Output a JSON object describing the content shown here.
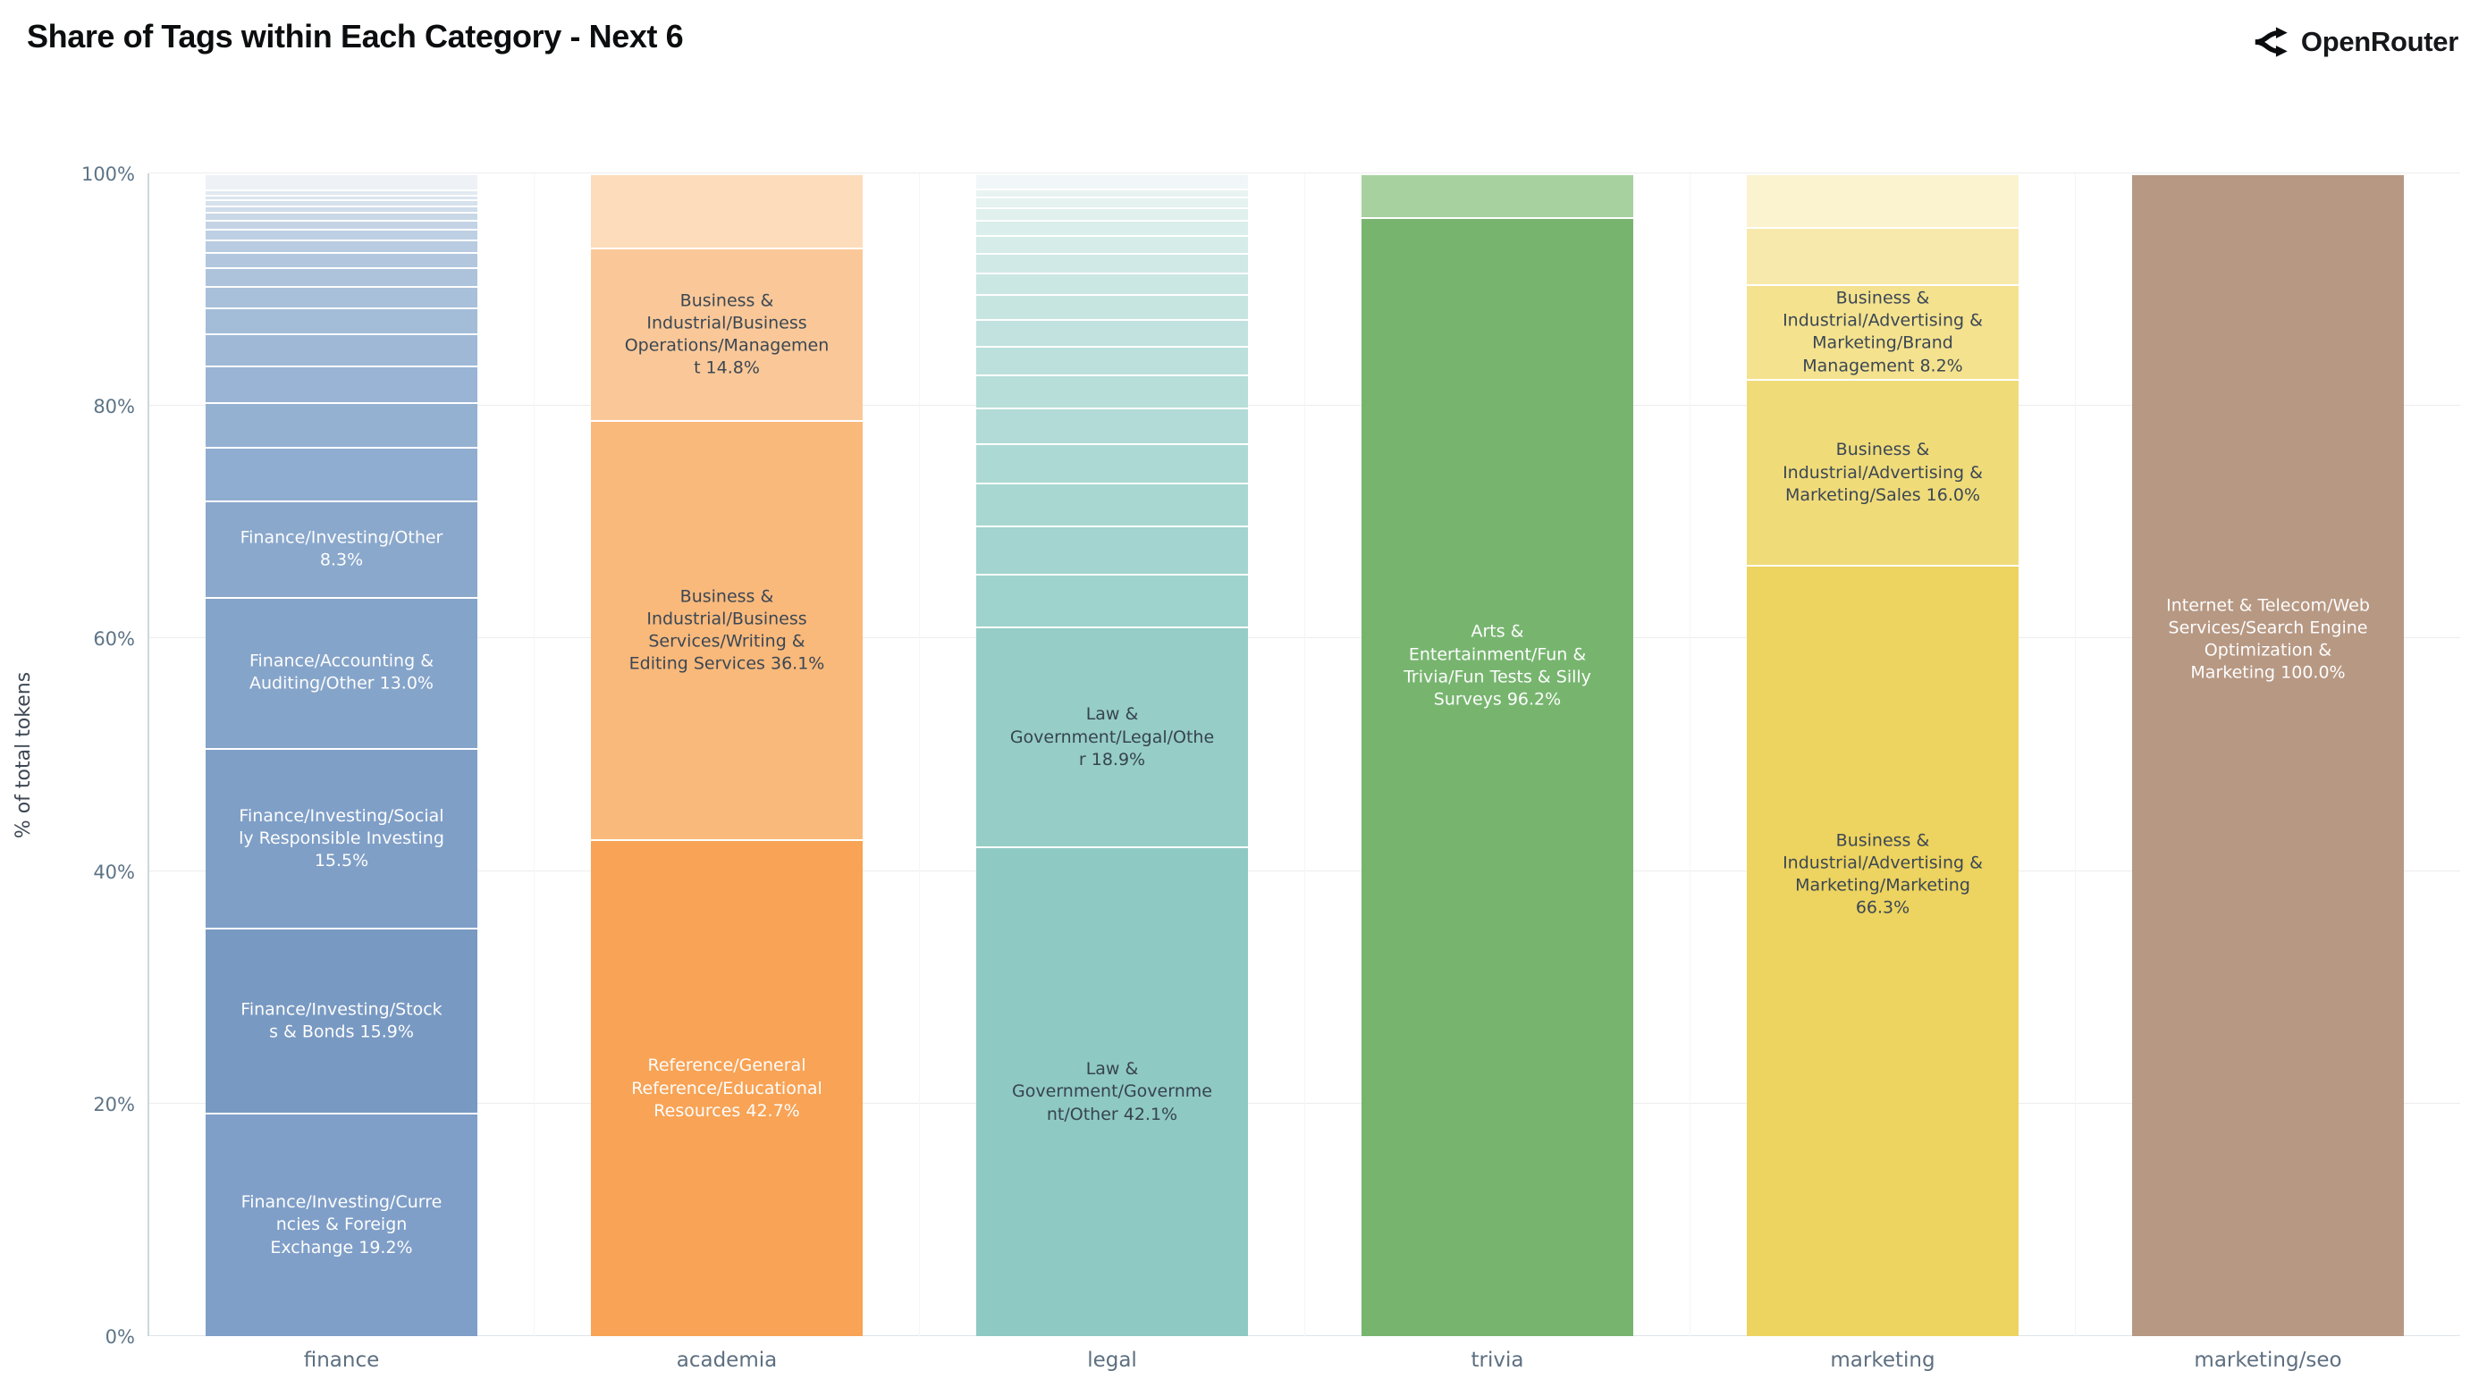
{
  "page": {
    "title": "Share of Tags within Each Category - Next 6"
  },
  "brand": {
    "name": "OpenRouter",
    "logo_icon": "route-split-icon"
  },
  "chart_data": {
    "type": "bar",
    "stacking": "percent",
    "title": "Share of Tags within Each Category - Next 6",
    "xlabel": "",
    "ylabel": "% of total tokens",
    "ylim": [
      0,
      100
    ],
    "grid": "horizontal",
    "legend": "none",
    "yticks": [
      {
        "value": 0,
        "label": "0%"
      },
      {
        "value": 20,
        "label": "20%"
      },
      {
        "value": 40,
        "label": "40%"
      },
      {
        "value": 60,
        "label": "60%"
      },
      {
        "value": 80,
        "label": "80%"
      },
      {
        "value": 100,
        "label": "100%"
      }
    ],
    "categories": [
      "finance",
      "academia",
      "legal",
      "trivia",
      "marketing",
      "marketing/seo"
    ],
    "bars": [
      {
        "category": "finance",
        "segments": [
          {
            "label": "Finance/Investing/Currencies & Foreign Exchange 19.2%",
            "value": 19.2,
            "color": "#7f9fc8",
            "text_color": "#fdfdfd"
          },
          {
            "label": "Finance/Investing/Stocks & Bonds 15.9%",
            "value": 15.9,
            "color": "#7899c2",
            "text_color": "#fdfdfd"
          },
          {
            "label": "Finance/Investing/Socially Responsible Investing 15.5%",
            "value": 15.5,
            "color": "#7f9fc7",
            "text_color": "#fdfdfd"
          },
          {
            "label": "Finance/Accounting & Auditing/Other 13.0%",
            "value": 13.0,
            "color": "#85a4ca",
            "text_color": "#fdfdfd"
          },
          {
            "label": "Finance/Investing/Other 8.3%",
            "value": 8.3,
            "color": "#8aa8cc",
            "text_color": "#fdfdfd"
          },
          {
            "label": "",
            "value": 4.6,
            "color": "#8fadd0"
          },
          {
            "label": "",
            "value": 3.8,
            "color": "#94b1d2"
          },
          {
            "label": "",
            "value": 3.2,
            "color": "#99b4d4"
          },
          {
            "label": "",
            "value": 2.75,
            "color": "#9eb8d6"
          },
          {
            "label": "",
            "value": 2.2,
            "color": "#a3bcd8"
          },
          {
            "label": "",
            "value": 1.9,
            "color": "#a8c0da"
          },
          {
            "label": "",
            "value": 1.6,
            "color": "#adc3dc"
          },
          {
            "label": "",
            "value": 1.3,
            "color": "#b2c7de"
          },
          {
            "label": "",
            "value": 1.1,
            "color": "#b8cbe0"
          },
          {
            "label": "",
            "value": 0.9,
            "color": "#bdcfe2"
          },
          {
            "label": "",
            "value": 0.8,
            "color": "#c3d3e5"
          },
          {
            "label": "",
            "value": 0.65,
            "color": "#c9d8e7"
          },
          {
            "label": "",
            "value": 0.55,
            "color": "#cfdcea"
          },
          {
            "label": "",
            "value": 0.5,
            "color": "#d5e1ec"
          },
          {
            "label": "",
            "value": 0.45,
            "color": "#dbe5ef"
          },
          {
            "label": "",
            "value": 0.4,
            "color": "#e1eaf1"
          },
          {
            "label": "",
            "value": 1.4,
            "color": "#eef2f7"
          }
        ]
      },
      {
        "category": "academia",
        "segments": [
          {
            "label": "Reference/General Reference/Educational Resources 42.7%",
            "value": 42.7,
            "color": "#f8a355",
            "text_color": "#fdfdfd"
          },
          {
            "label": "Business & Industrial/Business Services/Writing & Editing Services 36.1%",
            "value": 36.1,
            "color": "#f9b97b",
            "text_color": "#3b4754"
          },
          {
            "label": "Business & Industrial/Business Operations/Management 14.8%",
            "value": 14.8,
            "color": "#fac898",
            "text_color": "#3b4754"
          },
          {
            "label": "",
            "value": 6.4,
            "color": "#fcdcba"
          }
        ]
      },
      {
        "category": "legal",
        "segments": [
          {
            "label": "Law & Government/Government/Other 42.1%",
            "value": 42.1,
            "color": "#8fc9c3",
            "text_color": "#36444f"
          },
          {
            "label": "Law & Government/Legal/Other 18.9%",
            "value": 18.9,
            "color": "#96cdc7",
            "text_color": "#36444f"
          },
          {
            "label": "",
            "value": 4.6,
            "color": "#9ed2cc"
          },
          {
            "label": "",
            "value": 4.1,
            "color": "#a3d4cf"
          },
          {
            "label": "",
            "value": 3.7,
            "color": "#a8d7d2"
          },
          {
            "label": "",
            "value": 3.4,
            "color": "#add9d4"
          },
          {
            "label": "",
            "value": 3.1,
            "color": "#b2dbd7"
          },
          {
            "label": "",
            "value": 2.8,
            "color": "#b7ded9"
          },
          {
            "label": "",
            "value": 2.5,
            "color": "#bce0dc"
          },
          {
            "label": "",
            "value": 2.3,
            "color": "#c1e2de"
          },
          {
            "label": "",
            "value": 2.1,
            "color": "#c6e5e1"
          },
          {
            "label": "",
            "value": 1.9,
            "color": "#cbe7e3"
          },
          {
            "label": "",
            "value": 1.7,
            "color": "#d0e9e6"
          },
          {
            "label": "",
            "value": 1.5,
            "color": "#d5ece8"
          },
          {
            "label": "",
            "value": 1.3,
            "color": "#daeeeb"
          },
          {
            "label": "",
            "value": 1.1,
            "color": "#dff0ed"
          },
          {
            "label": "",
            "value": 0.9,
            "color": "#e4f2f0"
          },
          {
            "label": "",
            "value": 0.7,
            "color": "#e9f4f2"
          },
          {
            "label": "",
            "value": 1.3,
            "color": "#f1f7f8"
          }
        ]
      },
      {
        "category": "trivia",
        "segments": [
          {
            "label": "Arts & Entertainment/Fun & Trivia/Fun Tests & Silly Surveys 96.2%",
            "value": 96.2,
            "color": "#77b56f",
            "text_color": "#fdfdfd"
          },
          {
            "label": "",
            "value": 3.8,
            "color": "#a8d1a0"
          }
        ]
      },
      {
        "category": "marketing",
        "segments": [
          {
            "label": "Business & Industrial/Advertising & Marketing/Marketing 66.3%",
            "value": 66.3,
            "color": "#edd35f",
            "text_color": "#3b4754"
          },
          {
            "label": "Business & Industrial/Advertising & Marketing/Sales 16.0%",
            "value": 16.0,
            "color": "#f0db79",
            "text_color": "#3b4754"
          },
          {
            "label": "Business & Industrial/Advertising & Marketing/Brand Management 8.2%",
            "value": 8.2,
            "color": "#f4e28e",
            "text_color": "#3b4754"
          },
          {
            "label": "",
            "value": 4.9,
            "color": "#f7e9ab"
          },
          {
            "label": "",
            "value": 4.6,
            "color": "#fbf2d0"
          }
        ]
      },
      {
        "category": "marketing/seo",
        "segments": [
          {
            "label": "Internet & Telecom/Web Services/Search Engine Optimization & Marketing 100.0%",
            "value": 100.0,
            "color": "#b79883",
            "text_color": "#fdfdfd"
          }
        ]
      }
    ]
  }
}
